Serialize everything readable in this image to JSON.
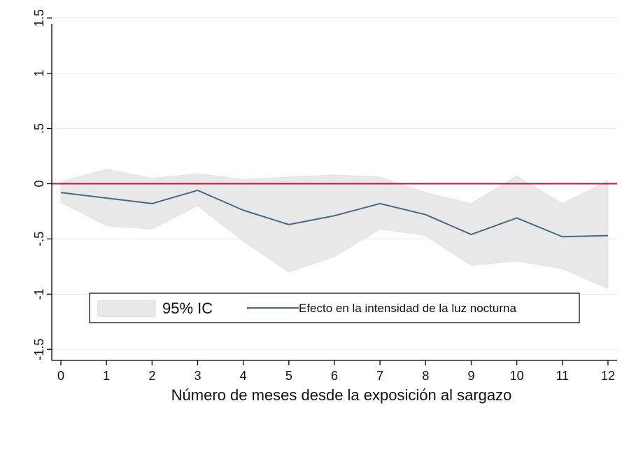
{
  "chart_data": {
    "type": "line",
    "title": "",
    "xlabel": "Número de meses desde la exposición al sargazo",
    "ylabel": "",
    "x": [
      0,
      1,
      2,
      3,
      4,
      5,
      6,
      7,
      8,
      9,
      10,
      11,
      12
    ],
    "x_ticks": [
      "0",
      "1",
      "2",
      "3",
      "4",
      "5",
      "6",
      "7",
      "8",
      "9",
      "10",
      "11",
      "12"
    ],
    "y_ticks": [
      {
        "value": -1.5,
        "label": "-1.5"
      },
      {
        "value": -1,
        "label": "-1"
      },
      {
        "value": -0.5,
        "label": "-.5"
      },
      {
        "value": 0,
        "label": "0"
      },
      {
        "value": 0.5,
        "label": ".5"
      },
      {
        "value": 1,
        "label": "1"
      },
      {
        "value": 1.5,
        "label": "1.5"
      }
    ],
    "ylim": [
      -1.6,
      1.6
    ],
    "xlim": [
      -0.2,
      12.2
    ],
    "grid": true,
    "series": [
      {
        "name": "Efecto en la intensidad de la luz nocturna",
        "type": "line",
        "color": "#4a6a82",
        "values": [
          -0.08,
          -0.13,
          -0.18,
          -0.06,
          -0.24,
          -0.37,
          -0.29,
          -0.18,
          -0.28,
          -0.46,
          -0.31,
          -0.48,
          -0.47
        ]
      },
      {
        "name": "95% IC",
        "type": "area",
        "color": "#e8e8e8",
        "upper": [
          0.02,
          0.13,
          0.05,
          0.09,
          0.04,
          0.06,
          0.08,
          0.06,
          -0.08,
          -0.18,
          0.07,
          -0.18,
          0.03
        ],
        "lower": [
          -0.17,
          -0.38,
          -0.41,
          -0.2,
          -0.52,
          -0.8,
          -0.66,
          -0.41,
          -0.47,
          -0.74,
          -0.7,
          -0.77,
          -0.95
        ]
      }
    ],
    "reference_line": {
      "y": 0,
      "color": "#c0143c"
    },
    "legend": {
      "placement": "bottom",
      "entries": [
        {
          "label": "95% IC",
          "kind": "area"
        },
        {
          "label": "Efecto en la intensidad de la luz nocturna",
          "kind": "line"
        }
      ]
    },
    "colors": {
      "grid": "#e4eef2",
      "axis": "#000000",
      "ci_fill": "#e8e8e8",
      "ci_stroke": "#f3dde3",
      "line": "#4a6a82",
      "zero_line": "#c0143c"
    }
  }
}
